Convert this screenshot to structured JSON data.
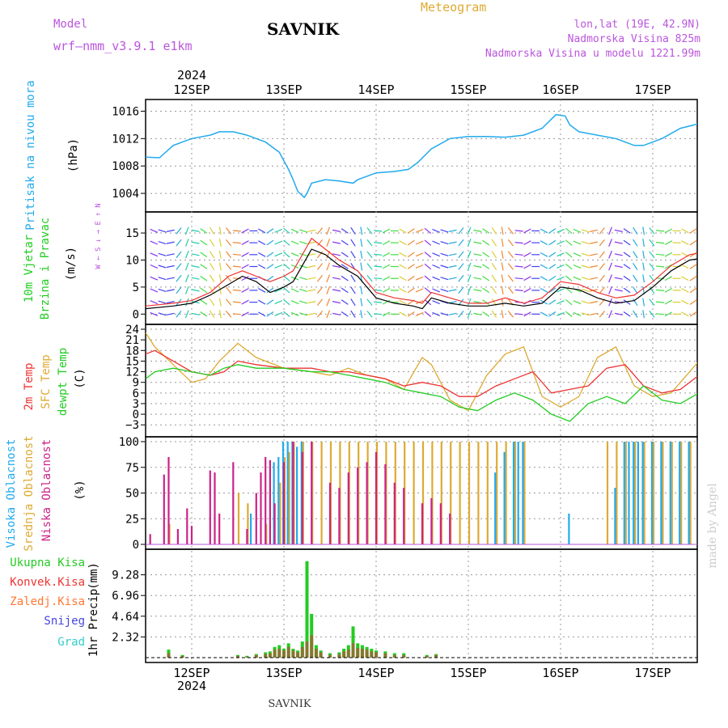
{
  "header": {
    "model_label": "Model",
    "model_name": "wrf—nmm_v3.9.1 e1km",
    "station": "SAVNIK",
    "product": "Meteogram",
    "coords": "lon,lat (19E, 42.9N)",
    "elevation": "Nadmorska Visina 825m",
    "model_elevation": "Nadmorska Visina u modelu 1221.99m",
    "year_top": "2024",
    "year_bottom": "2024",
    "footer_station": "SAVNIK",
    "credit": "made by Angel"
  },
  "colors": {
    "pressure": "#22aaee",
    "temp2m": "#ee3333",
    "sfc": "#ddaa33",
    "dewpt": "#22cc22",
    "wind_line": "#000000",
    "gust": "#ee3333",
    "high": "#22aaee",
    "mid": "#ddaa33",
    "low": "#cc2288",
    "total": "#22cc22",
    "conv": "#ee3333",
    "frozen": "#ff7733",
    "snow": "#4444dd",
    "hail": "#33cccc",
    "label_purple": "#bb55dd"
  },
  "chart_data": {
    "type": "meteogram",
    "x_ticks": [
      "12SEP",
      "13SEP",
      "14SEP",
      "15SEP",
      "16SEP",
      "17SEP"
    ],
    "panels": [
      {
        "id": "pressure",
        "label": "Pritisak na nivou mora",
        "unit": "(hPa)",
        "type": "line",
        "ylim": [
          1002,
          1017
        ],
        "yticks": [
          "1004",
          "1008",
          "1012",
          "1016"
        ],
        "ytick_values": [
          1004,
          1008,
          1012,
          1016
        ],
        "series": [
          {
            "x": [
              -0.5,
              -0.35,
              -0.2,
              0,
              0.2,
              0.3,
              0.45,
              0.6,
              0.8,
              0.95,
              1.05,
              1.1,
              1.15,
              1.22,
              1.25,
              1.3,
              1.45,
              1.6,
              1.75,
              1.8,
              1.9,
              2.0,
              2.2,
              2.35,
              2.45,
              2.6,
              2.8,
              3.0,
              3.2,
              3.4,
              3.6,
              3.8,
              3.95,
              4.05,
              4.1,
              4.2,
              4.4,
              4.6,
              4.8,
              4.9,
              5.1,
              5.3,
              5.45,
              5.6,
              5.75
            ],
            "y": [
              1009.3,
              1009.2,
              1011,
              1012,
              1012.5,
              1013,
              1013,
              1012.5,
              1011.5,
              1010,
              1007.5,
              1006,
              1004.3,
              1003.4,
              1004,
              1005.5,
              1006,
              1005.8,
              1005.5,
              1006,
              1006.5,
              1007,
              1007.2,
              1007.5,
              1008.5,
              1010.5,
              1012,
              1012.3,
              1012.3,
              1012.2,
              1012.5,
              1013.5,
              1015.5,
              1015.3,
              1014,
              1013,
              1012.5,
              1012,
              1011,
              1011,
              1012,
              1013.5,
              1014,
              1014.7,
              1013
            ]
          }
        ]
      },
      {
        "id": "wind",
        "label": "10m Vjetar Brzina i Pravac",
        "unit": "(m/s)",
        "direction_legend": "W ← S ↓ → E ↑ N",
        "type": "line",
        "ylim": [
          -1,
          18
        ],
        "yticks": [
          "0",
          "5",
          "10",
          "15"
        ],
        "ytick_values": [
          0,
          5,
          10,
          15
        ],
        "series": [
          {
            "name": "speed",
            "x": [
              -0.5,
              -0.2,
              0,
              0.2,
              0.4,
              0.55,
              0.7,
              0.85,
              1.0,
              1.1,
              1.2,
              1.3,
              1.45,
              1.6,
              1.8,
              2.0,
              2.2,
              2.4,
              2.5,
              2.6,
              2.8,
              3.0,
              3.2,
              3.4,
              3.6,
              3.8,
              4.0,
              4.2,
              4.4,
              4.6,
              4.8,
              5.0,
              5.2,
              5.4,
              5.6,
              5.75
            ],
            "y": [
              1,
              1.5,
              2,
              3.5,
              5.5,
              7,
              6,
              4,
              5,
              6,
              9,
              12,
              11,
              9,
              7,
              3,
              2,
              1.5,
              1,
              3,
              2,
              1.5,
              1.5,
              2,
              1.5,
              2,
              5,
              4.5,
              3,
              2,
              2.5,
              5,
              8,
              10,
              10.5,
              5.5
            ]
          },
          {
            "name": "gust",
            "x": [
              -0.5,
              -0.2,
              0,
              0.2,
              0.4,
              0.55,
              0.7,
              0.85,
              1.0,
              1.1,
              1.2,
              1.3,
              1.45,
              1.6,
              1.8,
              2.0,
              2.2,
              2.4,
              2.5,
              2.6,
              2.8,
              3.0,
              3.2,
              3.4,
              3.6,
              3.8,
              4.0,
              4.2,
              4.4,
              4.6,
              4.8,
              5.0,
              5.2,
              5.4,
              5.6,
              5.75
            ],
            "y": [
              1.5,
              2,
              2.5,
              4,
              7,
              8,
              7,
              6,
              7,
              8,
              11,
              14,
              12,
              10,
              8,
              4,
              3,
              2.5,
              2,
              4,
              3,
              2,
              2,
              3,
              2,
              3,
              6,
              5.5,
              4,
              3,
              3.5,
              6,
              9,
              11,
              11.5,
              6
            ]
          }
        ]
      },
      {
        "id": "temperature",
        "label": "2m Temp / SFC Temp / dewpt Temp",
        "label_2m": "2m Temp",
        "label_sfc": "SFC Temp",
        "label_dew": "dewpt Temp",
        "unit": "(C)",
        "type": "line",
        "ylim": [
          -5,
          24
        ],
        "yticks": [
          "24",
          "21",
          "18",
          "15",
          "12",
          "9",
          "6",
          "3",
          "0",
          "−3"
        ],
        "ytick_values": [
          24,
          21,
          18,
          15,
          12,
          9,
          6,
          3,
          0,
          -3
        ],
        "series": [
          {
            "name": "2m Temp",
            "x": [
              -0.5,
              -0.4,
              -0.2,
              0,
              0.2,
              0.35,
              0.5,
              0.7,
              1.0,
              1.3,
              1.5,
              1.7,
              1.9,
              2.1,
              2.3,
              2.5,
              2.7,
              2.9,
              3.1,
              3.3,
              3.5,
              3.7,
              3.9,
              4.1,
              4.3,
              4.5,
              4.7,
              4.9,
              5.1,
              5.3,
              5.5,
              5.75
            ],
            "y": [
              17,
              18,
              15,
              12,
              11,
              12,
              15,
              14,
              13,
              13,
              12,
              12,
              11,
              10,
              8,
              9,
              8,
              5,
              5,
              8,
              10,
              12,
              6,
              7,
              8,
              13,
              14,
              8,
              6,
              7,
              11,
              15
            ]
          },
          {
            "name": "SFC Temp",
            "x": [
              -0.5,
              -0.4,
              -0.2,
              0,
              0.15,
              0.3,
              0.5,
              0.7,
              1.0,
              1.3,
              1.5,
              1.7,
              1.9,
              2.1,
              2.3,
              2.5,
              2.6,
              2.8,
              3.0,
              3.2,
              3.4,
              3.6,
              3.8,
              4.0,
              4.2,
              4.4,
              4.6,
              4.8,
              5.0,
              5.2,
              5.4,
              5.6,
              5.75
            ],
            "y": [
              23,
              19,
              14,
              9,
              10,
              15,
              20,
              16,
              13,
              12,
              11,
              13,
              11,
              10,
              7,
              16,
              14,
              4,
              1,
              11,
              17,
              19,
              5,
              2,
              5,
              16,
              19,
              8,
              5,
              6,
              12,
              18,
              19
            ]
          },
          {
            "name": "dewpt Temp",
            "x": [
              -0.5,
              -0.4,
              -0.2,
              0,
              0.2,
              0.35,
              0.5,
              0.7,
              1.0,
              1.3,
              1.5,
              1.7,
              1.9,
              2.1,
              2.3,
              2.5,
              2.7,
              2.9,
              3.1,
              3.3,
              3.5,
              3.7,
              3.9,
              4.1,
              4.3,
              4.5,
              4.7,
              4.9,
              5.1,
              5.3,
              5.5,
              5.75
            ],
            "y": [
              10,
              12,
              13,
              12,
              11,
              13,
              14,
              13,
              13,
              12,
              12,
              11,
              10,
              9,
              7,
              6,
              5,
              2,
              1,
              4,
              6,
              4,
              0,
              -2,
              3,
              5,
              3,
              8,
              4,
              3,
              6,
              7
            ]
          }
        ]
      },
      {
        "id": "cloud",
        "label": "Visoka / Srednja / Niska Oblacnost",
        "label_high": "Visoka Oblacnost",
        "label_mid": "Srednja Oblacnost",
        "label_low": "Niska Oblacnost",
        "unit": "(%)",
        "type": "bar",
        "ylim": [
          0,
          100
        ],
        "yticks": [
          "0",
          "25",
          "50",
          "75",
          "100"
        ],
        "ytick_values": [
          0,
          25,
          50,
          75,
          100
        ],
        "bars_low": {
          "x": [
            -0.45,
            -0.3,
            -0.25,
            -0.15,
            -0.05,
            0,
            0.2,
            0.25,
            0.3,
            0.45,
            0.6,
            0.7,
            0.75,
            0.8,
            0.85,
            0.9,
            1.0,
            1.1,
            1.2,
            1.3,
            1.5,
            1.6,
            1.7,
            1.8,
            1.9,
            2.0,
            2.1,
            2.2,
            2.3,
            2.5,
            2.6,
            2.7,
            2.8
          ],
          "y": [
            10,
            68,
            85,
            15,
            35,
            18,
            72,
            70,
            30,
            80,
            15,
            50,
            70,
            85,
            82,
            40,
            80,
            100,
            90,
            100,
            60,
            55,
            70,
            75,
            80,
            90,
            78,
            60,
            55,
            40,
            45,
            40,
            30
          ]
        },
        "bars_mid": {
          "x": [
            -0.25,
            -0.1,
            0.5,
            0.6,
            0.8,
            0.95,
            1.0,
            1.05,
            1.1,
            1.2,
            1.3,
            1.4,
            1.5,
            1.6,
            1.7,
            1.8,
            1.9,
            2.0,
            2.1,
            2.2,
            2.3,
            2.4,
            2.5,
            2.6,
            2.7,
            2.8,
            2.9,
            3.0,
            3.1,
            3.2,
            3.3,
            3.4,
            3.5,
            3.6,
            4.5,
            4.6,
            4.7,
            4.8,
            4.9,
            5.0,
            5.1,
            5.2,
            5.3,
            5.4,
            5.5,
            5.6,
            5.7
          ],
          "y": [
            20,
            0,
            50,
            40,
            20,
            60,
            85,
            90,
            100,
            100,
            100,
            100,
            100,
            100,
            100,
            100,
            100,
            100,
            100,
            100,
            100,
            100,
            100,
            100,
            100,
            100,
            100,
            100,
            100,
            100,
            100,
            100,
            100,
            100,
            100,
            100,
            100,
            100,
            100,
            100,
            100,
            100,
            100,
            100,
            100,
            100,
            100
          ]
        },
        "bars_high": {
          "x": [
            0.65,
            0.9,
            0.95,
            1.0,
            1.05,
            1.1,
            1.15,
            1.2,
            3.3,
            3.4,
            3.5,
            3.55,
            3.6,
            4.1,
            4.6,
            4.7,
            4.75,
            4.8,
            4.85,
            4.9,
            5.0,
            5.1,
            5.2,
            5.3,
            5.4,
            5.5,
            5.6,
            5.7
          ],
          "y": [
            30,
            80,
            85,
            100,
            100,
            100,
            95,
            100,
            70,
            90,
            100,
            100,
            100,
            30,
            55,
            100,
            100,
            100,
            100,
            100,
            100,
            100,
            100,
            100,
            100,
            100,
            100,
            100
          ]
        }
      },
      {
        "id": "precip",
        "label": "1hr Precip",
        "unit": "(mm)",
        "type": "bar",
        "ylim": [
          0,
          11.6
        ],
        "yticks": [
          "2.32",
          "4.64",
          "6.96",
          "9.28"
        ],
        "ytick_values": [
          2.32,
          4.64,
          6.96,
          9.28
        ],
        "legend": [
          "Ukupna Kisa",
          "Konvek.Kisa",
          "Zaledj.Kisa",
          "Snijeg",
          "Grad"
        ],
        "bars_total": {
          "x": [
            -0.25,
            -0.1,
            0.5,
            0.6,
            0.7,
            0.8,
            0.85,
            0.9,
            0.95,
            1.0,
            1.05,
            1.1,
            1.15,
            1.2,
            1.25,
            1.3,
            1.35,
            1.4,
            1.5,
            1.6,
            1.65,
            1.7,
            1.75,
            1.8,
            1.85,
            1.9,
            1.95,
            2.0,
            2.1,
            2.2,
            2.3,
            2.55,
            2.65
          ],
          "y": [
            0.9,
            0.3,
            0.3,
            0.2,
            0.4,
            0.6,
            0.7,
            1.2,
            1.4,
            1.0,
            1.6,
            1.0,
            0.8,
            1.8,
            10.8,
            4.9,
            1.4,
            0.8,
            0.5,
            0.6,
            1.0,
            1.4,
            3.5,
            1.6,
            1.4,
            1.2,
            1.0,
            0.8,
            0.7,
            0.5,
            0.5,
            0.3,
            0.4
          ]
        },
        "bars_conv": {
          "x": [
            -0.25,
            -0.1,
            0.5,
            0.6,
            0.7,
            0.8,
            0.85,
            0.9,
            0.95,
            1.0,
            1.05,
            1.1,
            1.15,
            1.2,
            1.25,
            1.3,
            1.35,
            1.4,
            1.5,
            1.6,
            1.65,
            1.7,
            1.75,
            1.8,
            1.85,
            1.9,
            1.95,
            2.0,
            2.1,
            2.2,
            2.3,
            2.55,
            2.65
          ],
          "y": [
            0.5,
            0.2,
            0.2,
            0.1,
            0.3,
            0.4,
            0.5,
            0.9,
            1.0,
            0.8,
            1.2,
            0.8,
            0.6,
            1.2,
            1.8,
            2.5,
            1.0,
            0.6,
            0.3,
            0.4,
            0.7,
            0.9,
            1.6,
            1.1,
            1.0,
            0.9,
            0.7,
            0.6,
            0.5,
            0.3,
            0.3,
            0.2,
            0.3
          ]
        }
      }
    ]
  }
}
